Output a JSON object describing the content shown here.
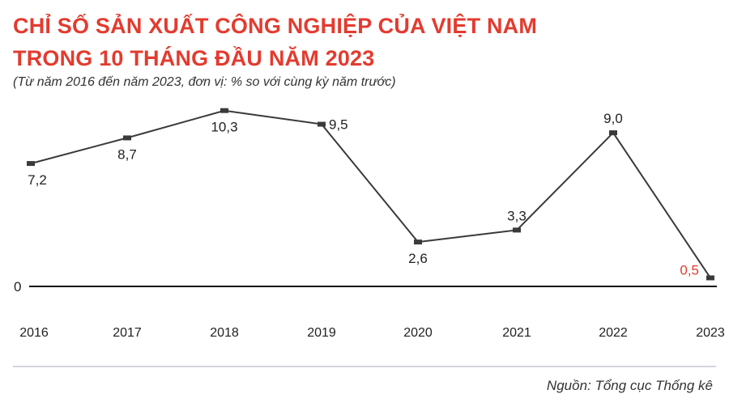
{
  "header": {
    "title_line1": "CHỈ SỐ SẢN XUẤT CÔNG NGHIỆP CỦA VIỆT NAM",
    "title_line2": "TRONG 10 THÁNG ĐẦU NĂM 2023",
    "subtitle": "(Từ năm 2016 đến năm 2023, đơn vị: % so với cùng kỳ năm trước)"
  },
  "footer": {
    "source": "Nguồn: Tổng cục Thống kê"
  },
  "chart_data": {
    "type": "line",
    "categories": [
      "2016",
      "2017",
      "2018",
      "2019",
      "2020",
      "2021",
      "2022",
      "2023"
    ],
    "values": [
      7.2,
      8.7,
      10.3,
      9.5,
      2.6,
      3.3,
      9.0,
      0.5
    ],
    "value_labels": [
      "7,2",
      "8,7",
      "10,3",
      "9,5",
      "2,6",
      "3,3",
      "9,0",
      "0,5"
    ],
    "baseline_label": "0",
    "highlight_index": 7,
    "grid": false,
    "legend": "none",
    "colors": {
      "line": "#3a3a3a",
      "marker": "#3a3a3a",
      "label": "#222222",
      "highlight": "#e33b2f",
      "axis": "#111111",
      "divider": "#c9c6d4"
    }
  }
}
